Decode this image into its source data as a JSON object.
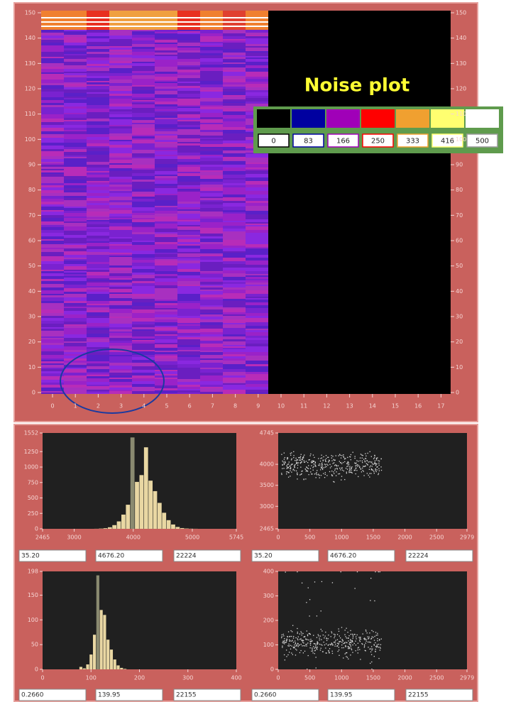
{
  "noise_plot": {
    "title": "Noise plot",
    "yticks": [
      0,
      10,
      20,
      30,
      40,
      50,
      60,
      70,
      80,
      90,
      100,
      110,
      120,
      130,
      140,
      150
    ],
    "xticks": [
      0,
      1,
      2,
      3,
      4,
      5,
      6,
      7,
      8,
      9,
      10,
      11,
      12,
      13,
      14,
      15,
      16,
      17
    ]
  },
  "legend": {
    "colors": [
      "#000000",
      "#0000a0",
      "#a000b8",
      "#ff0000",
      "#f0a030",
      "#ffff70",
      "#ffffff"
    ],
    "labels": [
      "0",
      "83",
      "166",
      "250",
      "333",
      "416",
      "500"
    ]
  },
  "panels": [
    {
      "type": "histogram",
      "xticks": [
        2465,
        3000,
        4000,
        5000,
        5745
      ],
      "yticks": [
        0,
        250,
        500,
        750,
        1000,
        1250,
        1552
      ],
      "values": [
        0,
        0,
        0,
        0,
        0,
        1,
        4,
        10,
        25,
        60,
        120,
        230,
        390,
        1480,
        760,
        870,
        1320,
        780,
        610,
        420,
        260,
        140,
        70,
        30,
        12,
        5,
        2,
        1,
        0,
        0
      ]
    },
    {
      "type": "scatter",
      "xticks": [
        0,
        500,
        1000,
        1500,
        2000,
        2500,
        2979
      ],
      "yticks": [
        2465,
        3000,
        3500,
        4000,
        4745
      ]
    },
    {
      "type": "histogram",
      "xticks": [
        0,
        100,
        200,
        300,
        400
      ],
      "yticks": [
        0,
        50,
        100,
        150,
        198
      ],
      "values": [
        0,
        0,
        0,
        0,
        0,
        0,
        0,
        0,
        5,
        2,
        10,
        30,
        70,
        190,
        120,
        110,
        60,
        40,
        20,
        8,
        3,
        1,
        0,
        0,
        0,
        0,
        0,
        0,
        0,
        0,
        0,
        0,
        0,
        0,
        0,
        0,
        0,
        0,
        0,
        0
      ]
    },
    {
      "type": "scatter",
      "xticks": [
        0,
        500,
        1000,
        1500,
        2000,
        2500,
        2979
      ],
      "yticks": [
        0,
        100,
        200,
        300,
        400
      ]
    }
  ],
  "readouts": [
    [
      "35.20",
      "4676.20",
      "22224"
    ],
    [
      "35.20",
      "4676.20",
      "22224"
    ],
    [
      "0.2660",
      "139.95",
      "22155"
    ],
    [
      "0.2660",
      "139.95",
      "22155"
    ]
  ]
}
